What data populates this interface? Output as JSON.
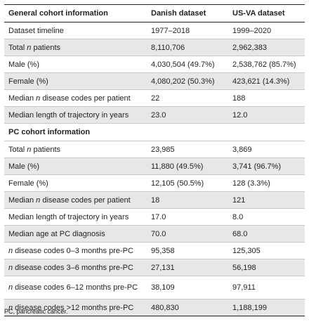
{
  "header": {
    "col1": "General cohort information",
    "col2": "Danish dataset",
    "col3": "US-VA dataset"
  },
  "general_rows": [
    {
      "pre": "Dataset timeline",
      "em": "",
      "post": "",
      "danish": "1977–2018",
      "usva": "1999–2020"
    },
    {
      "pre": "Total ",
      "em": "n",
      "post": " patients",
      "danish": "8,110,706",
      "usva": "2,962,383"
    },
    {
      "pre": "Male (%)",
      "em": "",
      "post": "",
      "danish": "4,030,504 (49.7%)",
      "usva": "2,538,762 (85.7%)"
    },
    {
      "pre": "Female (%)",
      "em": "",
      "post": "",
      "danish": "4,080,202 (50.3%)",
      "usva": "423,621 (14.3%)"
    },
    {
      "pre": "Median ",
      "em": "n",
      "post": " disease codes per patient",
      "danish": "22",
      "usva": "188"
    },
    {
      "pre": "Median length of trajectory in years",
      "em": "",
      "post": "",
      "danish": "23.0",
      "usva": "12.0"
    }
  ],
  "pc_section": {
    "title": "PC cohort information"
  },
  "pc_rows": [
    {
      "pre": "Total ",
      "em": "n",
      "post": " patients",
      "danish": "23,985",
      "usva": "3,869"
    },
    {
      "pre": "Male (%)",
      "em": "",
      "post": "",
      "danish": "11,880 (49.5%)",
      "usva": "3,741 (96.7%)"
    },
    {
      "pre": "Female (%)",
      "em": "",
      "post": "",
      "danish": "12,105 (50.5%)",
      "usva": "128 (3.3%)"
    },
    {
      "pre": "Median ",
      "em": "n",
      "post": " disease codes per patient",
      "danish": "18",
      "usva": "121"
    },
    {
      "pre": "Median length of trajectory in years",
      "em": "",
      "post": "",
      "danish": "17.0",
      "usva": "8.0"
    },
    {
      "pre": "Median age at PC diagnosis",
      "em": "",
      "post": "",
      "danish": "70.0",
      "usva": "68.0"
    },
    {
      "pre": "",
      "em": "n",
      "post": " disease codes 0–3 months pre-PC",
      "danish": "95,358",
      "usva": "125,305"
    },
    {
      "pre": "",
      "em": "n",
      "post": " disease codes 3–6 months pre-PC",
      "danish": "27,131",
      "usva": "56,198"
    },
    {
      "pre": "",
      "em": "n",
      "post": " disease codes 6–12 months pre-PC",
      "danish": "38,109",
      "usva": "97,911"
    },
    {
      "pre": "",
      "em": "n",
      "post": " disease codes >12 months pre-PC",
      "danish": "480,830",
      "usva": "1,188,199"
    }
  ],
  "footnote": "PC, pancreatic cancer."
}
